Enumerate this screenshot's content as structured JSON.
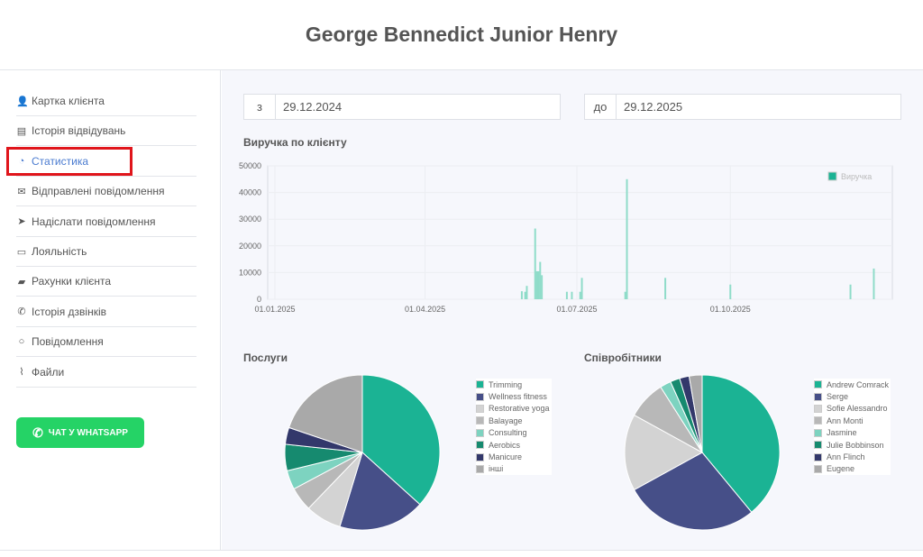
{
  "header": {
    "title": "George Bennedict Junior Henry"
  },
  "sidebar": {
    "items": [
      {
        "label": "Картка клієнта",
        "icon": "user-icon"
      },
      {
        "label": "Історія відвідувань",
        "icon": "table-icon"
      },
      {
        "label": "Статистика",
        "icon": "pie-chart-icon",
        "active": true
      },
      {
        "label": "Відправлені повідомлення",
        "icon": "envelope-icon"
      },
      {
        "label": "Надіслати повідомлення",
        "icon": "paper-plane-icon"
      },
      {
        "label": "Лояльність",
        "icon": "credit-card-icon"
      },
      {
        "label": "Рахунки клієнта",
        "icon": "briefcase-icon"
      },
      {
        "label": "Історія дзвінків",
        "icon": "phone-icon"
      },
      {
        "label": "Повідомлення",
        "icon": "comment-icon"
      },
      {
        "label": "Файли",
        "icon": "paperclip-icon"
      }
    ],
    "whatsapp_label": "ЧАТ У WHATSAPP"
  },
  "filters": {
    "from_label": "з",
    "from_value": "29.12.2024",
    "to_label": "до",
    "to_value": "29.12.2025"
  },
  "colors": {
    "accent": "#1bb394",
    "highlight": "#e0151b",
    "whatsapp": "#25d366"
  },
  "chart_data": [
    {
      "type": "bar",
      "title": "Виручка по клієнту",
      "legend": [
        "Виручка"
      ],
      "legend_position": "top-right",
      "ylim": [
        0,
        50000
      ],
      "yticks": [
        0,
        10000,
        20000,
        30000,
        40000,
        50000
      ],
      "xticks": [
        "01.01.2025",
        "01.04.2025",
        "01.07.2025",
        "01.10.2025"
      ],
      "xrange": [
        "2025-01-01",
        "2025-12-29"
      ],
      "points": [
        [
          "2025-05-29",
          3000
        ],
        [
          "2025-05-31",
          2800
        ],
        [
          "2025-06-01",
          5000
        ],
        [
          "2025-06-06",
          26500
        ],
        [
          "2025-06-07",
          10500
        ],
        [
          "2025-06-08",
          10500
        ],
        [
          "2025-06-09",
          14000
        ],
        [
          "2025-06-10",
          9000
        ],
        [
          "2025-06-25",
          2800
        ],
        [
          "2025-06-28",
          2800
        ],
        [
          "2025-07-03",
          2800
        ],
        [
          "2025-07-04",
          8000
        ],
        [
          "2025-07-30",
          2800
        ],
        [
          "2025-07-31",
          45000
        ],
        [
          "2025-08-23",
          8000
        ],
        [
          "2025-10-01",
          5500
        ],
        [
          "2025-12-12",
          5500
        ],
        [
          "2025-12-26",
          11500
        ]
      ]
    },
    {
      "type": "pie",
      "title": "Послуги",
      "labels": [
        "Trimming",
        "Wellness fitness",
        "Restorative yoga",
        "Balayage",
        "Consulting",
        "Aerobics",
        "Manicure",
        "інші"
      ],
      "values": [
        36.7,
        18,
        7.5,
        5,
        4,
        5.5,
        3.5,
        19.8
      ],
      "colors": [
        "#1bb394",
        "#464f88",
        "#d3d3d3",
        "#b8b8b8",
        "#7dd3c0",
        "#168a6f",
        "#33386b",
        "#a9a9a9"
      ]
    },
    {
      "type": "pie",
      "title": "Співробітники",
      "labels": [
        "Andrew Comrack",
        "Serge",
        "Sofie Alessandro",
        "Ann Monti",
        "Jasmine",
        "Julie Bobbinson",
        "Ann Flinch",
        "Eugene"
      ],
      "values": [
        39,
        28,
        16,
        8,
        2.3,
        2,
        2,
        2.7
      ],
      "colors": [
        "#1bb394",
        "#464f88",
        "#d3d3d3",
        "#b8b8b8",
        "#7dd3c0",
        "#168a6f",
        "#33386b",
        "#a9a9a9"
      ]
    }
  ]
}
